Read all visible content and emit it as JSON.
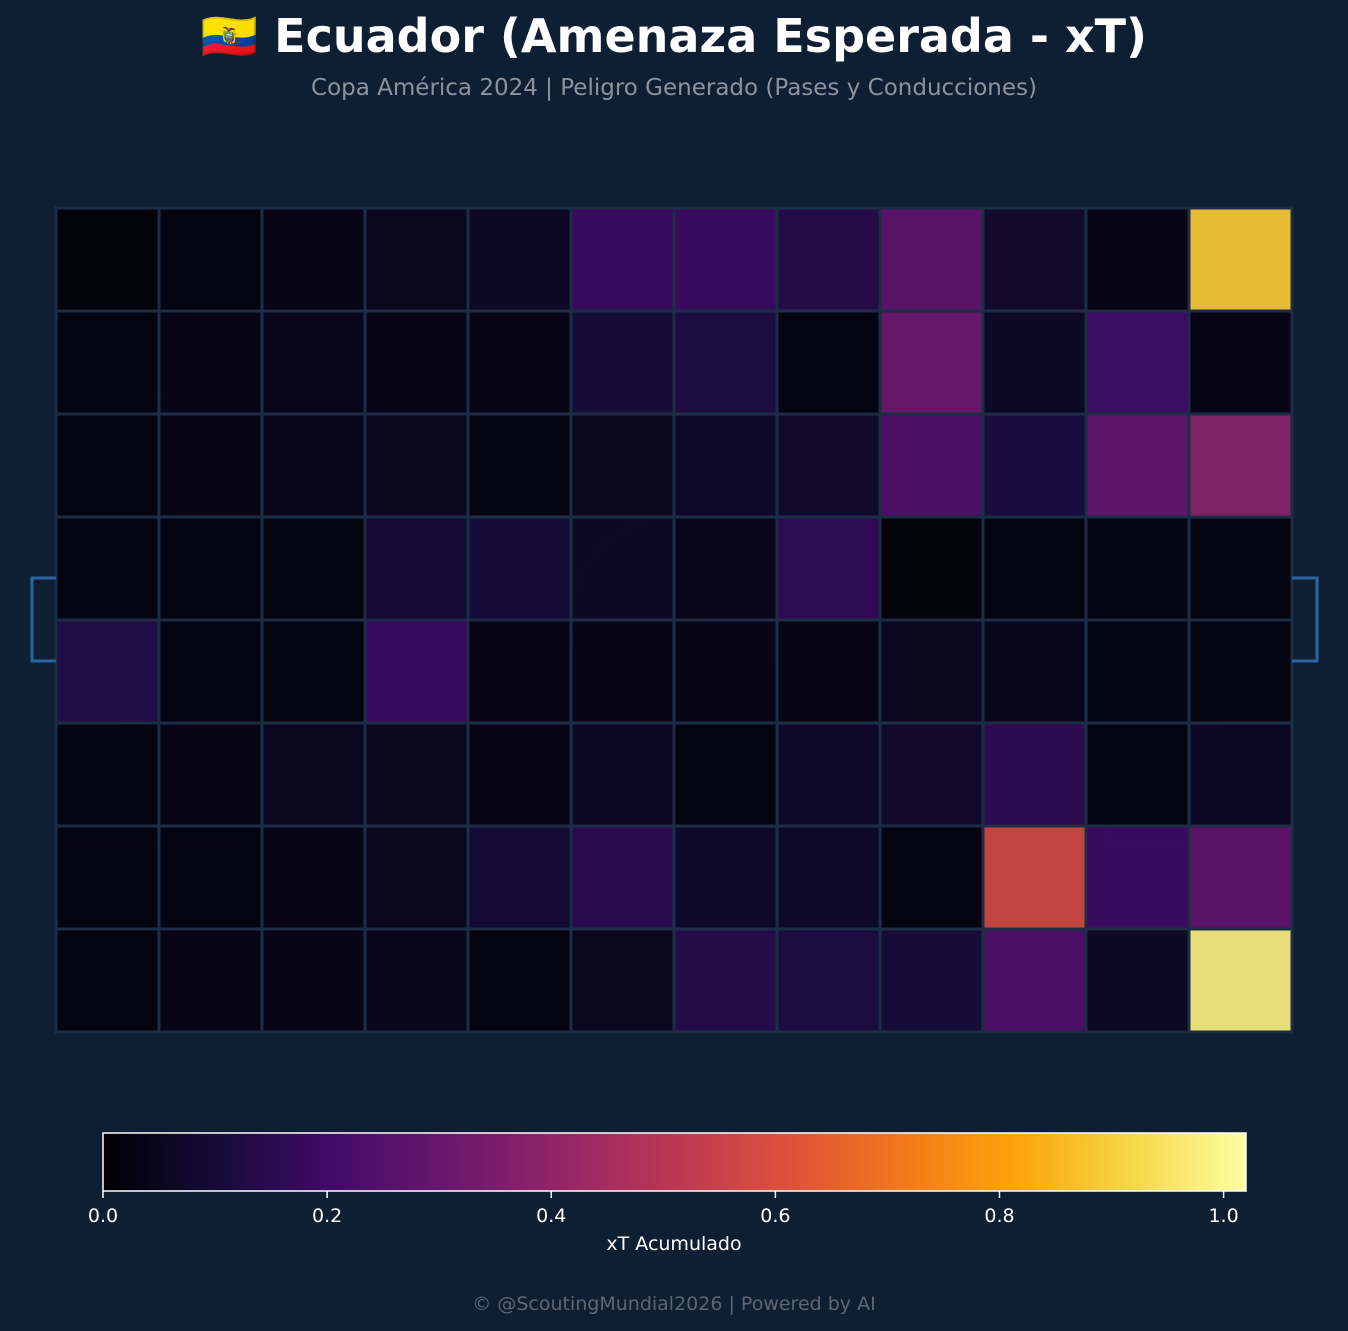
{
  "title": "🇪🇨 Ecuador (Amenaza Esperada - xT)",
  "subtitle": "Copa América 2024 | Peligro Generado (Pases y Conducciones)",
  "footer": "© @ScoutingMundial2026 | Powered by AI",
  "colors": {
    "background": "#0e1e33",
    "pitch_lines": "#1c2d45",
    "goal": "#2d62a3",
    "text": "#ffffff",
    "subtitle": "#8c939c"
  },
  "chart_data": {
    "type": "heatmap",
    "colormap": "inferno",
    "rows": 8,
    "cols": 12,
    "values": [
      [
        0.01,
        0.02,
        0.03,
        0.05,
        0.06,
        0.19,
        0.19,
        0.14,
        0.28,
        0.08,
        0.03,
        0.89
      ],
      [
        0.02,
        0.03,
        0.04,
        0.03,
        0.03,
        0.1,
        0.12,
        0.02,
        0.31,
        0.06,
        0.2,
        0.03
      ],
      [
        0.02,
        0.03,
        0.04,
        0.05,
        0.02,
        0.05,
        0.07,
        0.08,
        0.24,
        0.11,
        0.29,
        0.38
      ],
      [
        0.02,
        0.02,
        0.02,
        0.09,
        0.1,
        0.06,
        0.04,
        0.17,
        0.01,
        0.02,
        0.02,
        0.02
      ],
      [
        0.13,
        0.02,
        0.02,
        0.19,
        0.03,
        0.03,
        0.03,
        0.03,
        0.05,
        0.04,
        0.02,
        0.02
      ],
      [
        0.02,
        0.03,
        0.05,
        0.05,
        0.03,
        0.06,
        0.02,
        0.07,
        0.08,
        0.16,
        0.02,
        0.06
      ],
      [
        0.02,
        0.02,
        0.03,
        0.05,
        0.09,
        0.15,
        0.07,
        0.07,
        0.02,
        0.58,
        0.19,
        0.28
      ],
      [
        0.02,
        0.03,
        0.03,
        0.04,
        0.02,
        0.05,
        0.14,
        0.12,
        0.1,
        0.24,
        0.06,
        0.98
      ]
    ],
    "colorbar": {
      "label": "xT Acumulado",
      "range": [
        0.0,
        1.02
      ],
      "ticks": [
        "0.0",
        "0.2",
        "0.4",
        "0.6",
        "0.8",
        "1.0"
      ]
    }
  }
}
